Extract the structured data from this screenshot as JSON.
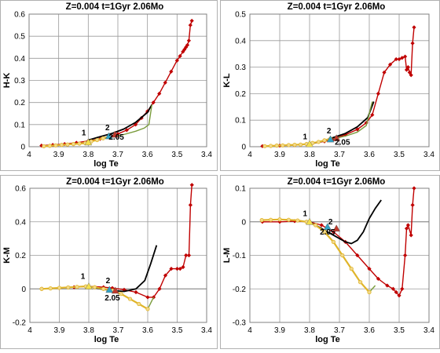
{
  "chart_data": [
    {
      "type": "line",
      "title": "Z=0.004  t=1Gyr  2.06Mo",
      "xlabel": "log Te",
      "ylabel": "H-K",
      "xlim": [
        4.0,
        3.4
      ],
      "ylim": [
        0,
        0.6
      ],
      "xticks": [
        "4",
        "3.9",
        "3.8",
        "3.7",
        "3.6",
        "3.5",
        "3.4"
      ],
      "yticks": [
        "0",
        "0.1",
        "0.2",
        "0.3",
        "0.4",
        "0.5",
        "0.6"
      ],
      "grid": true,
      "series": [
        {
          "color": "#c00000",
          "marker": "diamond",
          "x": [
            3.958,
            3.92,
            3.88,
            3.84,
            3.8,
            3.76,
            3.73,
            3.7,
            3.67,
            3.64,
            3.62,
            3.6,
            3.58,
            3.56,
            3.54,
            3.52,
            3.5,
            3.49,
            3.48,
            3.475,
            3.47,
            3.465,
            3.46,
            3.455,
            3.45
          ],
          "y": [
            0.005,
            0.008,
            0.012,
            0.018,
            0.026,
            0.035,
            0.045,
            0.058,
            0.075,
            0.1,
            0.13,
            0.16,
            0.2,
            0.24,
            0.29,
            0.34,
            0.39,
            0.41,
            0.43,
            0.44,
            0.45,
            0.46,
            0.48,
            0.55,
            0.57
          ]
        },
        {
          "color": "#000000",
          "marker": "none",
          "x": [
            3.8,
            3.76,
            3.72,
            3.68,
            3.64,
            3.6,
            3.585
          ],
          "y": [
            0.03,
            0.045,
            0.06,
            0.08,
            0.11,
            0.155,
            0.19
          ]
        },
        {
          "color": "#7a9c3c",
          "marker": "none",
          "x": [
            3.72,
            3.68,
            3.64,
            3.61,
            3.595,
            3.585
          ],
          "y": [
            0.045,
            0.055,
            0.07,
            0.085,
            0.1,
            0.19
          ]
        },
        {
          "color": "#e0b52a",
          "marker": "circle",
          "x": [
            3.95,
            3.93,
            3.91,
            3.89,
            3.87,
            3.85,
            3.83,
            3.81,
            3.8,
            3.79,
            3.77,
            3.75,
            3.73
          ],
          "y": [
            0.002,
            0.004,
            0.006,
            0.008,
            0.01,
            0.012,
            0.014,
            0.016,
            0.02,
            0.024,
            0.03,
            0.038,
            0.045
          ]
        }
      ],
      "annotations": [
        {
          "text": "1",
          "x": 3.815,
          "y": 0.052
        },
        {
          "text": "2",
          "x": 3.735,
          "y": 0.075
        },
        {
          "text": "2.05",
          "x": 3.705,
          "y": 0.032
        }
      ],
      "points": [
        {
          "label": "1",
          "shape": "triangle",
          "color": "#f4e04d",
          "x": 3.8,
          "y": 0.02
        },
        {
          "label": "2",
          "shape": "triangle",
          "color": "#31a2c4",
          "x": 3.73,
          "y": 0.048
        },
        {
          "label": "2.05",
          "shape": "triangle",
          "color": "#c0392b",
          "x": 3.71,
          "y": 0.055
        }
      ]
    },
    {
      "type": "line",
      "title": "Z=0.004  t=1Gyr  2.06Mo",
      "xlabel": "log Te",
      "ylabel": "K-L",
      "xlim": [
        4.0,
        3.4
      ],
      "ylim": [
        0,
        0.5
      ],
      "xticks": [
        "4",
        "3.9",
        "3.8",
        "3.7",
        "3.6",
        "3.5",
        "3.4"
      ],
      "yticks": [
        "0",
        "0.1",
        "0.2",
        "0.3",
        "0.4",
        "0.5"
      ],
      "grid": true,
      "series": [
        {
          "color": "#c00000",
          "marker": "diamond",
          "x": [
            3.958,
            3.9,
            3.85,
            3.8,
            3.75,
            3.72,
            3.68,
            3.64,
            3.61,
            3.59,
            3.57,
            3.55,
            3.53,
            3.51,
            3.5,
            3.49,
            3.48,
            3.475,
            3.47,
            3.465,
            3.46,
            3.455,
            3.45
          ],
          "y": [
            0.002,
            0.004,
            0.006,
            0.01,
            0.02,
            0.03,
            0.045,
            0.065,
            0.09,
            0.12,
            0.2,
            0.28,
            0.31,
            0.33,
            0.33,
            0.335,
            0.34,
            0.29,
            0.3,
            0.28,
            0.27,
            0.39,
            0.45
          ]
        },
        {
          "color": "#000000",
          "marker": "none",
          "x": [
            3.8,
            3.76,
            3.72,
            3.68,
            3.64,
            3.605,
            3.585
          ],
          "y": [
            0.01,
            0.02,
            0.035,
            0.05,
            0.075,
            0.11,
            0.17
          ]
        },
        {
          "color": "#7a9c3c",
          "marker": "none",
          "x": [
            3.72,
            3.68,
            3.64,
            3.61,
            3.59
          ],
          "y": [
            0.03,
            0.04,
            0.055,
            0.08,
            0.17
          ]
        },
        {
          "color": "#e0b52a",
          "marker": "circle",
          "x": [
            3.95,
            3.93,
            3.91,
            3.89,
            3.87,
            3.85,
            3.83,
            3.81,
            3.79,
            3.77,
            3.75,
            3.73
          ],
          "y": [
            0.002,
            0.003,
            0.004,
            0.005,
            0.006,
            0.007,
            0.008,
            0.01,
            0.014,
            0.018,
            0.024,
            0.03
          ]
        }
      ],
      "annotations": [
        {
          "text": "1",
          "x": 3.815,
          "y": 0.028
        },
        {
          "text": "2",
          "x": 3.735,
          "y": 0.05
        },
        {
          "text": "2.05",
          "x": 3.69,
          "y": 0.008
        }
      ],
      "points": [
        {
          "label": "1",
          "shape": "triangle",
          "color": "#f4e04d",
          "x": 3.8,
          "y": 0.01
        },
        {
          "label": "2",
          "shape": "triangle",
          "color": "#31a2c4",
          "x": 3.73,
          "y": 0.028
        },
        {
          "label": "2.05",
          "shape": "triangle",
          "color": "#c0392b",
          "x": 3.71,
          "y": 0.032
        }
      ]
    },
    {
      "type": "line",
      "title": "Z=0.004  t=1Gyr  2.06Mo",
      "xlabel": "log Te",
      "ylabel": "K-M",
      "xlim": [
        4.0,
        3.4
      ],
      "ylim": [
        -0.2,
        0.6
      ],
      "xticks": [
        "4",
        "3.9",
        "3.8",
        "3.7",
        "3.6",
        "3.5",
        "3.4"
      ],
      "yticks": [
        "-0.2",
        "0",
        "0.2",
        "0.4",
        "0.6"
      ],
      "grid": true,
      "series": [
        {
          "color": "#c00000",
          "marker": "diamond",
          "x": [
            3.958,
            3.9,
            3.85,
            3.8,
            3.75,
            3.72,
            3.68,
            3.64,
            3.6,
            3.58,
            3.56,
            3.54,
            3.52,
            3.5,
            3.49,
            3.48,
            3.47,
            3.46,
            3.455,
            3.45
          ],
          "y": [
            0.0,
            0.005,
            0.01,
            0.015,
            0.01,
            0.005,
            -0.005,
            -0.02,
            -0.05,
            -0.05,
            0.0,
            0.08,
            0.12,
            0.12,
            0.12,
            0.13,
            0.2,
            0.2,
            0.5,
            0.62
          ]
        },
        {
          "color": "#000000",
          "marker": "none",
          "x": [
            3.8,
            3.76,
            3.72,
            3.68,
            3.64,
            3.61,
            3.59,
            3.57
          ],
          "y": [
            0.015,
            0.0,
            -0.01,
            -0.015,
            0.0,
            0.05,
            0.15,
            0.26
          ]
        },
        {
          "color": "#7a9c3c",
          "marker": "none",
          "x": [
            3.6,
            3.58
          ],
          "y": [
            -0.12,
            -0.05
          ]
        },
        {
          "color": "#e0b52a",
          "marker": "circle",
          "x": [
            3.96,
            3.93,
            3.9,
            3.87,
            3.84,
            3.81,
            3.78,
            3.75,
            3.72,
            3.69,
            3.66,
            3.63,
            3.6
          ],
          "y": [
            0.0,
            0.003,
            0.006,
            0.009,
            0.012,
            0.015,
            0.01,
            0.0,
            -0.01,
            -0.03,
            -0.06,
            -0.09,
            -0.12
          ]
        }
      ],
      "annotations": [
        {
          "text": "1",
          "x": 3.82,
          "y": 0.06
        },
        {
          "text": "2",
          "x": 3.735,
          "y": 0.035
        },
        {
          "text": "2.05",
          "x": 3.72,
          "y": -0.07
        }
      ],
      "points": [
        {
          "label": "1",
          "shape": "triangle",
          "color": "#f4e04d",
          "x": 3.8,
          "y": 0.015
        },
        {
          "label": "2",
          "shape": "triangle",
          "color": "#31a2c4",
          "x": 3.73,
          "y": -0.005
        },
        {
          "label": "2.05",
          "shape": "triangle",
          "color": "#c0392b",
          "x": 3.71,
          "y": -0.01
        }
      ]
    },
    {
      "type": "line",
      "title": "Z=0.004  t=1Gyr  2.06Mo",
      "xlabel": "log Te",
      "ylabel": "L-M",
      "xlim": [
        4.0,
        3.4
      ],
      "ylim": [
        -0.3,
        0.1
      ],
      "xticks": [
        "4",
        "3.9",
        "3.8",
        "3.7",
        "3.6",
        "3.5",
        "3.4"
      ],
      "yticks": [
        "-0.3",
        "-0.2",
        "-0.1",
        "0",
        "0.1"
      ],
      "grid": true,
      "series": [
        {
          "color": "#c00000",
          "marker": "diamond",
          "x": [
            3.958,
            3.9,
            3.85,
            3.8,
            3.76,
            3.72,
            3.68,
            3.64,
            3.6,
            3.57,
            3.54,
            3.52,
            3.51,
            3.5,
            3.49,
            3.48,
            3.475,
            3.47,
            3.46,
            3.455,
            3.45
          ],
          "y": [
            0.0,
            0.0,
            0.002,
            0.0,
            -0.01,
            -0.03,
            -0.06,
            -0.1,
            -0.14,
            -0.17,
            -0.19,
            -0.2,
            -0.21,
            -0.22,
            -0.2,
            -0.1,
            -0.02,
            -0.01,
            -0.04,
            0.05,
            0.1
          ]
        },
        {
          "color": "#000000",
          "marker": "none",
          "x": [
            3.8,
            3.76,
            3.72,
            3.68,
            3.66,
            3.64,
            3.62,
            3.6,
            3.58,
            3.56
          ],
          "y": [
            0.0,
            -0.02,
            -0.04,
            -0.06,
            -0.065,
            -0.055,
            -0.03,
            0.01,
            0.04,
            0.065
          ]
        },
        {
          "color": "#7a9c3c",
          "marker": "none",
          "x": [
            3.6,
            3.58
          ],
          "y": [
            -0.21,
            -0.19
          ]
        },
        {
          "color": "#e0b52a",
          "marker": "circle",
          "x": [
            3.96,
            3.93,
            3.9,
            3.87,
            3.84,
            3.81,
            3.78,
            3.75,
            3.72,
            3.69,
            3.66,
            3.63,
            3.6
          ],
          "y": [
            0.005,
            0.006,
            0.007,
            0.006,
            0.004,
            0.0,
            -0.01,
            -0.03,
            -0.06,
            -0.1,
            -0.14,
            -0.18,
            -0.21
          ]
        }
      ],
      "annotations": [
        {
          "text": "1",
          "x": 3.815,
          "y": 0.017
        },
        {
          "text": "2",
          "x": 3.73,
          "y": -0.008
        },
        {
          "text": "2.05",
          "x": 3.74,
          "y": -0.038
        }
      ],
      "points": [
        {
          "label": "1",
          "shape": "triangle",
          "color": "#f4e04d",
          "x": 3.8,
          "y": 0.0
        },
        {
          "label": "2",
          "shape": "triangle",
          "color": "#31a2c4",
          "x": 3.74,
          "y": -0.015
        },
        {
          "label": "2.05",
          "shape": "triangle",
          "color": "#c0392b",
          "x": 3.71,
          "y": -0.02
        }
      ]
    }
  ]
}
